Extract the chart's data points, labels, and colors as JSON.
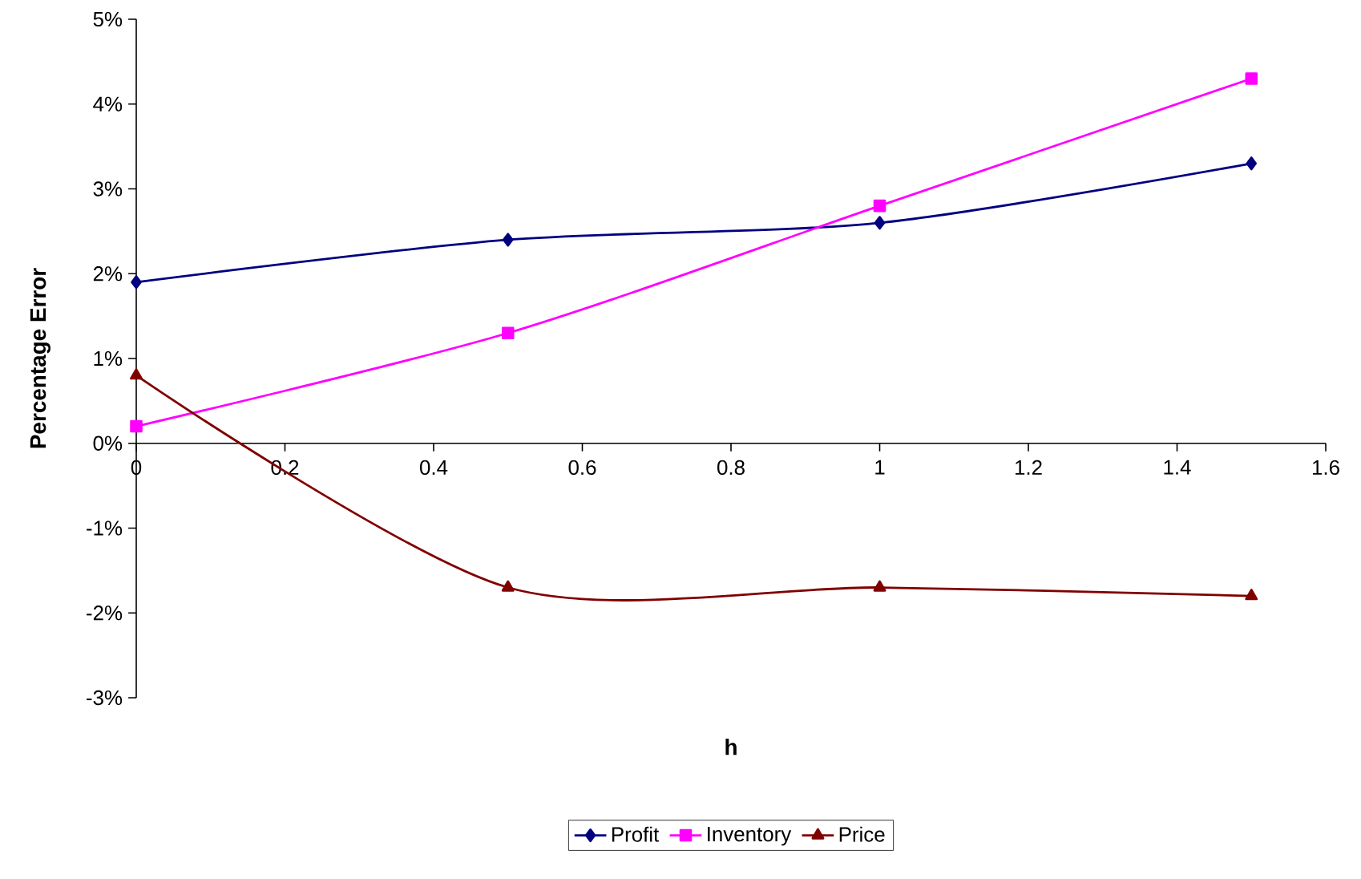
{
  "chart_data": {
    "type": "line",
    "xlabel": "h",
    "ylabel": "Percentage Error",
    "x": [
      0,
      0.5,
      1,
      1.5
    ],
    "series": [
      {
        "name": "Profit",
        "color": "#000080",
        "marker": "diamond",
        "values": [
          1.9,
          2.4,
          2.6,
          3.3
        ]
      },
      {
        "name": "Inventory",
        "color": "#ff00ff",
        "marker": "square",
        "values": [
          0.2,
          1.3,
          2.8,
          4.3
        ]
      },
      {
        "name": "Price",
        "color": "#800000",
        "marker": "triangle",
        "values": [
          0.8,
          -1.7,
          -1.7,
          -1.8
        ]
      }
    ],
    "xlim": [
      0,
      1.6
    ],
    "ylim": [
      -3,
      5
    ],
    "xticks": [
      0,
      0.2,
      0.4,
      0.6,
      0.8,
      1,
      1.2,
      1.4,
      1.6
    ],
    "yticks": [
      {
        "value": -3,
        "label": "-3%"
      },
      {
        "value": -2,
        "label": "-2%"
      },
      {
        "value": -1,
        "label": "-1%"
      },
      {
        "value": 0,
        "label": "0%"
      },
      {
        "value": 1,
        "label": "1%"
      },
      {
        "value": 2,
        "label": "2%"
      },
      {
        "value": 3,
        "label": "3%"
      },
      {
        "value": 4,
        "label": "4%"
      },
      {
        "value": 5,
        "label": "5%"
      }
    ],
    "legend": "bottom",
    "grid": false
  }
}
